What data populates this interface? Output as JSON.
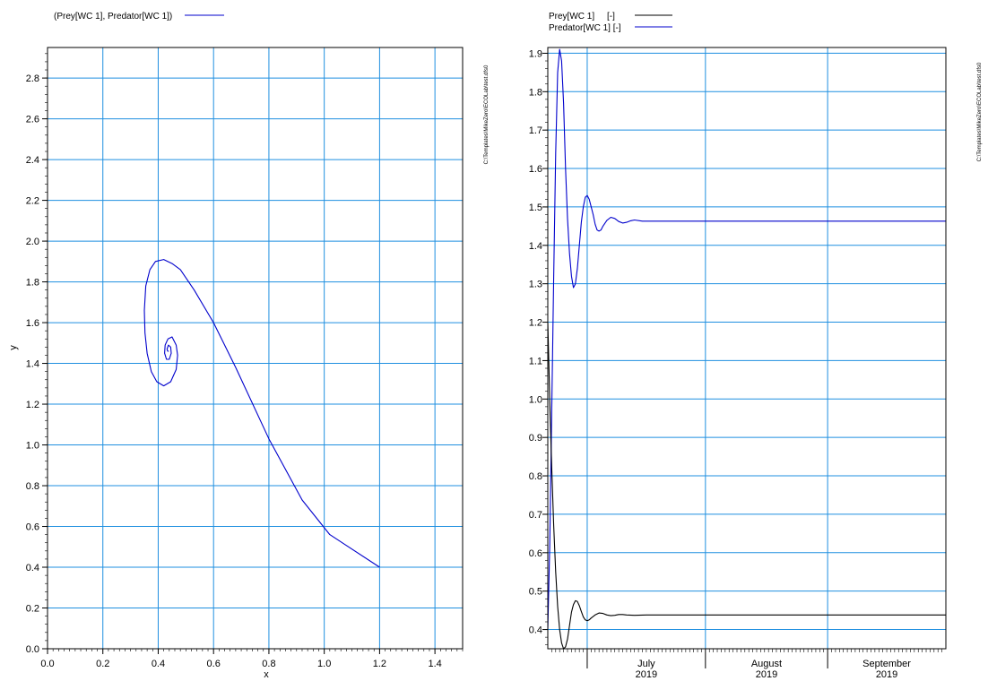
{
  "left_panel": {
    "legend_label": "(Prey[WC 1], Predator[WC 1])",
    "side_text": "C:\\Templates\\MikeZero\\ECOLab\\test.dfs0"
  },
  "right_panel": {
    "legend_labels": [
      "Prey[WC 1]     [-]",
      "Predator[WC 1] [-]"
    ],
    "side_text": "C:\\Templates\\MikeZero\\ECOLab\\test.dfs0"
  },
  "colors": {
    "grid": "#1f8fe0",
    "predator": "#0000cc",
    "prey": "#000000",
    "axis": "#000000"
  },
  "chart_data": [
    {
      "type": "line",
      "subtype": "phase-plot",
      "xlabel": "x",
      "ylabel": "y",
      "xlim": [
        0.0,
        1.5
      ],
      "ylim": [
        0.0,
        2.95
      ],
      "xticks": [
        0.0,
        0.2,
        0.4,
        0.6,
        0.8,
        1.0,
        1.2,
        1.4
      ],
      "yticks": [
        0.0,
        0.2,
        0.4,
        0.6,
        0.8,
        1.0,
        1.2,
        1.4,
        1.6,
        1.8,
        2.0,
        2.2,
        2.4,
        2.6,
        2.8
      ],
      "grid": true,
      "legend_position": "top-left",
      "series": [
        {
          "name": "(Prey[WC 1], Predator[WC 1])",
          "color": "#0000cc",
          "points": [
            [
              1.2,
              0.4
            ],
            [
              1.02,
              0.56
            ],
            [
              0.92,
              0.73
            ],
            [
              0.8,
              1.03
            ],
            [
              0.68,
              1.38
            ],
            [
              0.6,
              1.6
            ],
            [
              0.53,
              1.76
            ],
            [
              0.48,
              1.86
            ],
            [
              0.45,
              1.89
            ],
            [
              0.42,
              1.91
            ],
            [
              0.39,
              1.9
            ],
            [
              0.37,
              1.86
            ],
            [
              0.355,
              1.78
            ],
            [
              0.35,
              1.66
            ],
            [
              0.352,
              1.55
            ],
            [
              0.36,
              1.45
            ],
            [
              0.375,
              1.36
            ],
            [
              0.395,
              1.31
            ],
            [
              0.42,
              1.29
            ],
            [
              0.445,
              1.31
            ],
            [
              0.465,
              1.37
            ],
            [
              0.47,
              1.44
            ],
            [
              0.465,
              1.49
            ],
            [
              0.45,
              1.53
            ],
            [
              0.435,
              1.52
            ],
            [
              0.425,
              1.49
            ],
            [
              0.423,
              1.45
            ],
            [
              0.43,
              1.42
            ],
            [
              0.44,
              1.42
            ],
            [
              0.447,
              1.45
            ],
            [
              0.445,
              1.48
            ],
            [
              0.437,
              1.49
            ],
            [
              0.432,
              1.47
            ],
            [
              0.434,
              1.46
            ],
            [
              0.438,
              1.46
            ]
          ]
        }
      ]
    },
    {
      "type": "line",
      "subtype": "time-series",
      "xlim_days": [
        0,
        101
      ],
      "ylim": [
        0.35,
        1.915
      ],
      "yticks": [
        0.4,
        0.5,
        0.6,
        0.7,
        0.8,
        0.9,
        1.0,
        1.1,
        1.2,
        1.3,
        1.4,
        1.5,
        1.6,
        1.7,
        1.8,
        1.9
      ],
      "month_boundaries_days": [
        10,
        40,
        71
      ],
      "month_labels": [
        {
          "month": "July",
          "year": "2019",
          "day": 25
        },
        {
          "month": "August",
          "year": "2019",
          "day": 55.5
        },
        {
          "month": "September",
          "year": "2019",
          "day": 86
        }
      ],
      "grid": true,
      "legend_position": "top-left",
      "series": [
        {
          "name": "Predator[WC 1] [-]",
          "color": "#0000cc",
          "points": [
            [
              0,
              0.4
            ],
            [
              0.5,
              0.62
            ],
            [
              1.0,
              0.97
            ],
            [
              1.5,
              1.32
            ],
            [
              2.0,
              1.64
            ],
            [
              2.5,
              1.85
            ],
            [
              3.0,
              1.91
            ],
            [
              3.5,
              1.88
            ],
            [
              4.0,
              1.77
            ],
            [
              4.5,
              1.6
            ],
            [
              5.0,
              1.47
            ],
            [
              5.5,
              1.38
            ],
            [
              6.0,
              1.32
            ],
            [
              6.5,
              1.29
            ],
            [
              7.0,
              1.3
            ],
            [
              7.5,
              1.34
            ],
            [
              8.0,
              1.4
            ],
            [
              8.5,
              1.46
            ],
            [
              9.0,
              1.5
            ],
            [
              9.5,
              1.525
            ],
            [
              10.0,
              1.53
            ],
            [
              10.5,
              1.52
            ],
            [
              11.0,
              1.5
            ],
            [
              11.5,
              1.48
            ],
            [
              12.0,
              1.455
            ],
            [
              12.5,
              1.44
            ],
            [
              13.0,
              1.437
            ],
            [
              13.5,
              1.44
            ],
            [
              14.0,
              1.45
            ],
            [
              15.0,
              1.465
            ],
            [
              16.0,
              1.473
            ],
            [
              17.0,
              1.47
            ],
            [
              18.0,
              1.462
            ],
            [
              19.0,
              1.458
            ],
            [
              20.0,
              1.46
            ],
            [
              21.0,
              1.464
            ],
            [
              22.0,
              1.466
            ],
            [
              24.0,
              1.463
            ],
            [
              26.0,
              1.463
            ],
            [
              30.0,
              1.463
            ],
            [
              40.0,
              1.463
            ],
            [
              60.0,
              1.463
            ],
            [
              80.0,
              1.463
            ],
            [
              101.0,
              1.463
            ]
          ]
        },
        {
          "name": "Prey[WC 1]     [-]",
          "color": "#000000",
          "points": [
            [
              0,
              1.2
            ],
            [
              0.3,
              1.08
            ],
            [
              0.6,
              0.96
            ],
            [
              1.0,
              0.82
            ],
            [
              1.5,
              0.67
            ],
            [
              2.0,
              0.55
            ],
            [
              2.5,
              0.46
            ],
            [
              3.0,
              0.4
            ],
            [
              3.5,
              0.365
            ],
            [
              4.0,
              0.35
            ],
            [
              4.5,
              0.355
            ],
            [
              5.0,
              0.375
            ],
            [
              5.5,
              0.41
            ],
            [
              6.0,
              0.445
            ],
            [
              6.5,
              0.465
            ],
            [
              7.0,
              0.475
            ],
            [
              7.5,
              0.473
            ],
            [
              8.0,
              0.462
            ],
            [
              8.5,
              0.447
            ],
            [
              9.0,
              0.433
            ],
            [
              9.5,
              0.425
            ],
            [
              10.0,
              0.423
            ],
            [
              10.5,
              0.425
            ],
            [
              11.0,
              0.43
            ],
            [
              12.0,
              0.438
            ],
            [
              13.0,
              0.443
            ],
            [
              14.0,
              0.442
            ],
            [
              15.0,
              0.438
            ],
            [
              16.0,
              0.436
            ],
            [
              17.0,
              0.437
            ],
            [
              18.0,
              0.439
            ],
            [
              19.0,
              0.439
            ],
            [
              20.0,
              0.438
            ],
            [
              22.0,
              0.437
            ],
            [
              25.0,
              0.438
            ],
            [
              30.0,
              0.438
            ],
            [
              40.0,
              0.438
            ],
            [
              60.0,
              0.438
            ],
            [
              80.0,
              0.438
            ],
            [
              101.0,
              0.438
            ]
          ]
        }
      ]
    }
  ]
}
